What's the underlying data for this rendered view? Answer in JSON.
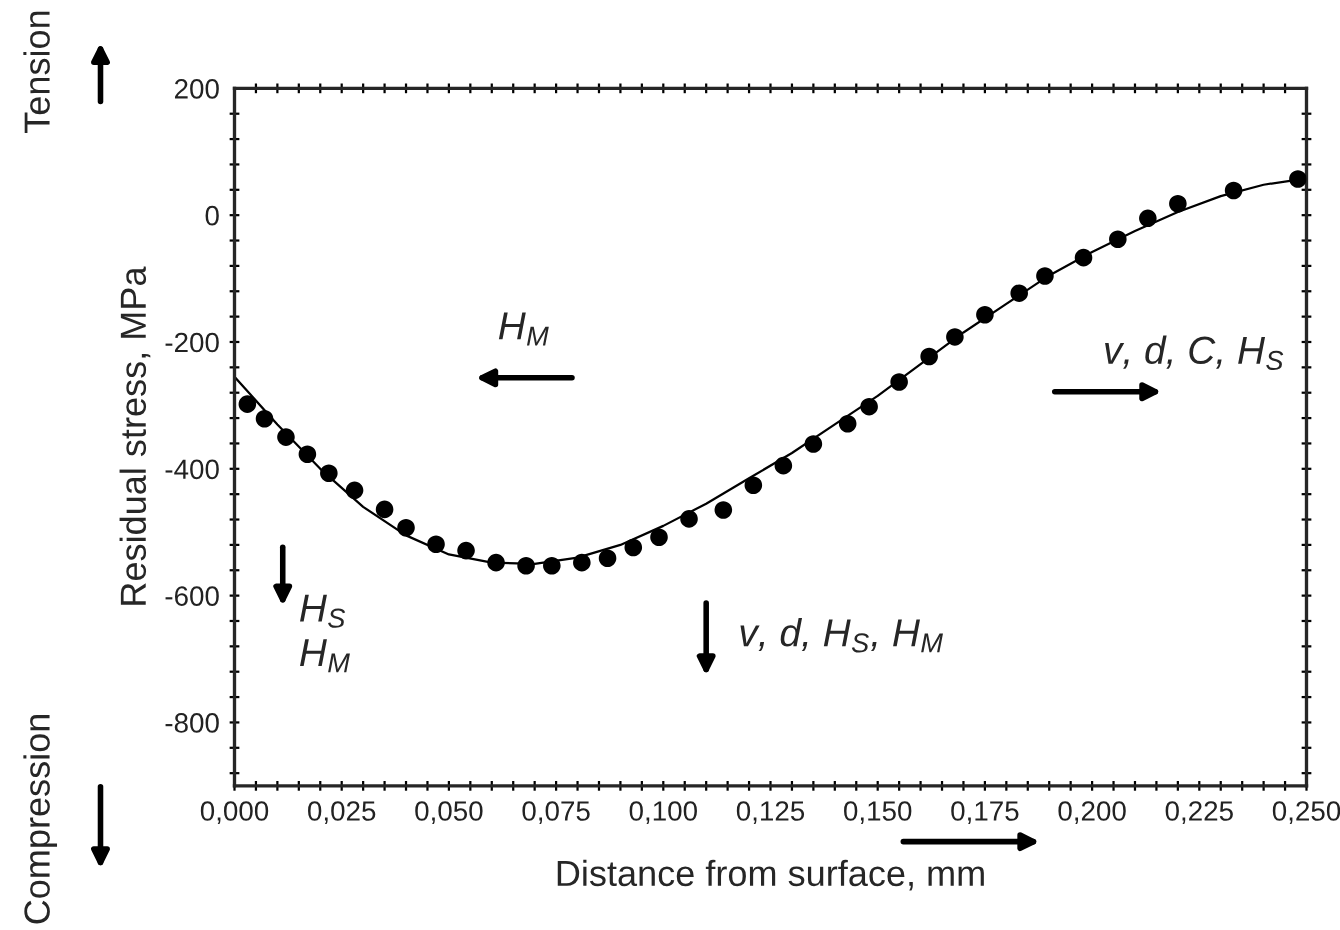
{
  "chart_data": {
    "type": "scatter",
    "xlabel": "Distance from surface, mm",
    "ylabel": "Residual stress, MPa",
    "annotations": [
      "Tension",
      "Compression",
      "H$_{M}$",
      "v, d, C, H$_{S}$",
      "H$_{S}$\nH$_{M}$",
      "v, d, H$_{S}$, H$_{M}$"
    ],
    "xlim": [
      0,
      0.25
    ],
    "ylim": [
      -900,
      200
    ],
    "xticks": [
      {
        "value": 0,
        "label": "0,000"
      },
      {
        "value": 0.005,
        "label": null
      },
      {
        "value": 0.01,
        "label": null
      },
      {
        "value": 0.015,
        "label": null
      },
      {
        "value": 0.02,
        "label": null
      },
      {
        "value": 0.025,
        "label": "0,025"
      },
      {
        "value": 0.03,
        "label": null
      },
      {
        "value": 0.035,
        "label": null
      },
      {
        "value": 0.04,
        "label": null
      },
      {
        "value": 0.045,
        "label": null
      },
      {
        "value": 0.05,
        "label": "0,050"
      },
      {
        "value": 0.055,
        "label": null
      },
      {
        "value": 0.06,
        "label": null
      },
      {
        "value": 0.065,
        "label": null
      },
      {
        "value": 0.07,
        "label": null
      },
      {
        "value": 0.075,
        "label": "0,075"
      },
      {
        "value": 0.08,
        "label": null
      },
      {
        "value": 0.085,
        "label": null
      },
      {
        "value": 0.09,
        "label": null
      },
      {
        "value": 0.095,
        "label": null
      },
      {
        "value": 0.1,
        "label": "0,100"
      },
      {
        "value": 0.105,
        "label": null
      },
      {
        "value": 0.11,
        "label": null
      },
      {
        "value": 0.115,
        "label": null
      },
      {
        "value": 0.12,
        "label": null
      },
      {
        "value": 0.125,
        "label": "0,125"
      },
      {
        "value": 0.13,
        "label": null
      },
      {
        "value": 0.135,
        "label": null
      },
      {
        "value": 0.14,
        "label": null
      },
      {
        "value": 0.145,
        "label": null
      },
      {
        "value": 0.15,
        "label": "0,150"
      },
      {
        "value": 0.155,
        "label": null
      },
      {
        "value": 0.16,
        "label": null
      },
      {
        "value": 0.165,
        "label": null
      },
      {
        "value": 0.17,
        "label": null
      },
      {
        "value": 0.175,
        "label": "0,175"
      },
      {
        "value": 0.18,
        "label": null
      },
      {
        "value": 0.185,
        "label": null
      },
      {
        "value": 0.19,
        "label": null
      },
      {
        "value": 0.195,
        "label": null
      },
      {
        "value": 0.2,
        "label": "0,200"
      },
      {
        "value": 0.205,
        "label": null
      },
      {
        "value": 0.21,
        "label": null
      },
      {
        "value": 0.215,
        "label": null
      },
      {
        "value": 0.22,
        "label": null
      },
      {
        "value": 0.225,
        "label": "0,225"
      },
      {
        "value": 0.23,
        "label": null
      },
      {
        "value": 0.235,
        "label": null
      },
      {
        "value": 0.24,
        "label": null
      },
      {
        "value": 0.245,
        "label": null
      },
      {
        "value": 0.25,
        "label": "0,250"
      }
    ],
    "yticks": [
      {
        "value": -880,
        "label": null
      },
      {
        "value": -840,
        "label": null
      },
      -800,
      {
        "value": -760,
        "label": null
      },
      {
        "value": -720,
        "label": null
      },
      {
        "value": -680,
        "label": null
      },
      {
        "value": -640,
        "label": null
      },
      -600,
      {
        "value": -560,
        "label": null
      },
      {
        "value": -520,
        "label": null
      },
      {
        "value": -480,
        "label": null
      },
      {
        "value": -440,
        "label": null
      },
      -400,
      {
        "value": -360,
        "label": null
      },
      {
        "value": -320,
        "label": null
      },
      {
        "value": -280,
        "label": null
      },
      {
        "value": -240,
        "label": null
      },
      -200,
      {
        "value": -160,
        "label": null
      },
      {
        "value": -120,
        "label": null
      },
      {
        "value": -80,
        "label": null
      },
      {
        "value": -40,
        "label": null
      },
      0,
      {
        "value": 40,
        "label": null
      },
      {
        "value": 80,
        "label": null
      },
      {
        "value": 120,
        "label": null
      },
      {
        "value": 160,
        "label": null
      },
      200
    ],
    "grid": false,
    "legend": false,
    "series": [
      {
        "color": "#000000",
        "marker": "circle",
        "x": [
          0.003,
          0.007,
          0.012,
          0.017,
          0.022,
          0.028,
          0.035,
          0.04,
          0.047,
          0.054,
          0.061,
          0.068,
          0.074,
          0.081,
          0.087,
          0.093,
          0.099,
          0.106,
          0.114,
          0.121,
          0.128,
          0.135,
          0.143,
          0.148,
          0.155,
          0.162,
          0.168,
          0.175,
          0.183,
          0.189,
          0.198,
          0.206,
          0.213,
          0.22,
          0.233,
          0.248
        ],
        "values": [
          -298,
          -321,
          -350,
          -377,
          -407,
          -434,
          -464,
          -493,
          -519,
          -529,
          -548,
          -553,
          -553,
          -548,
          -541,
          -524,
          -508,
          -479,
          -465,
          -426,
          -395,
          -361,
          -329,
          -302,
          -263,
          -223,
          -192,
          -157,
          -123,
          -96,
          -67,
          -38,
          -5,
          18,
          39,
          57
        ]
      },
      {
        "type": "line",
        "color": "#000000",
        "marker": "none",
        "line_style": "solid",
        "x": [
          0,
          0.01,
          0.02,
          0.03,
          0.04,
          0.05,
          0.06,
          0.07,
          0.08,
          0.09,
          0.1,
          0.11,
          0.12,
          0.13,
          0.14,
          0.15,
          0.16,
          0.17,
          0.18,
          0.19,
          0.2,
          0.21,
          0.22,
          0.23,
          0.24,
          0.25
        ],
        "values": [
          -255,
          -330,
          -400,
          -460,
          -505,
          -535,
          -548,
          -550,
          -540,
          -520,
          -490,
          -455,
          -415,
          -375,
          -330,
          -285,
          -235,
          -185,
          -140,
          -95,
          -58,
          -25,
          5,
          30,
          48,
          58
        ]
      }
    ]
  }
}
